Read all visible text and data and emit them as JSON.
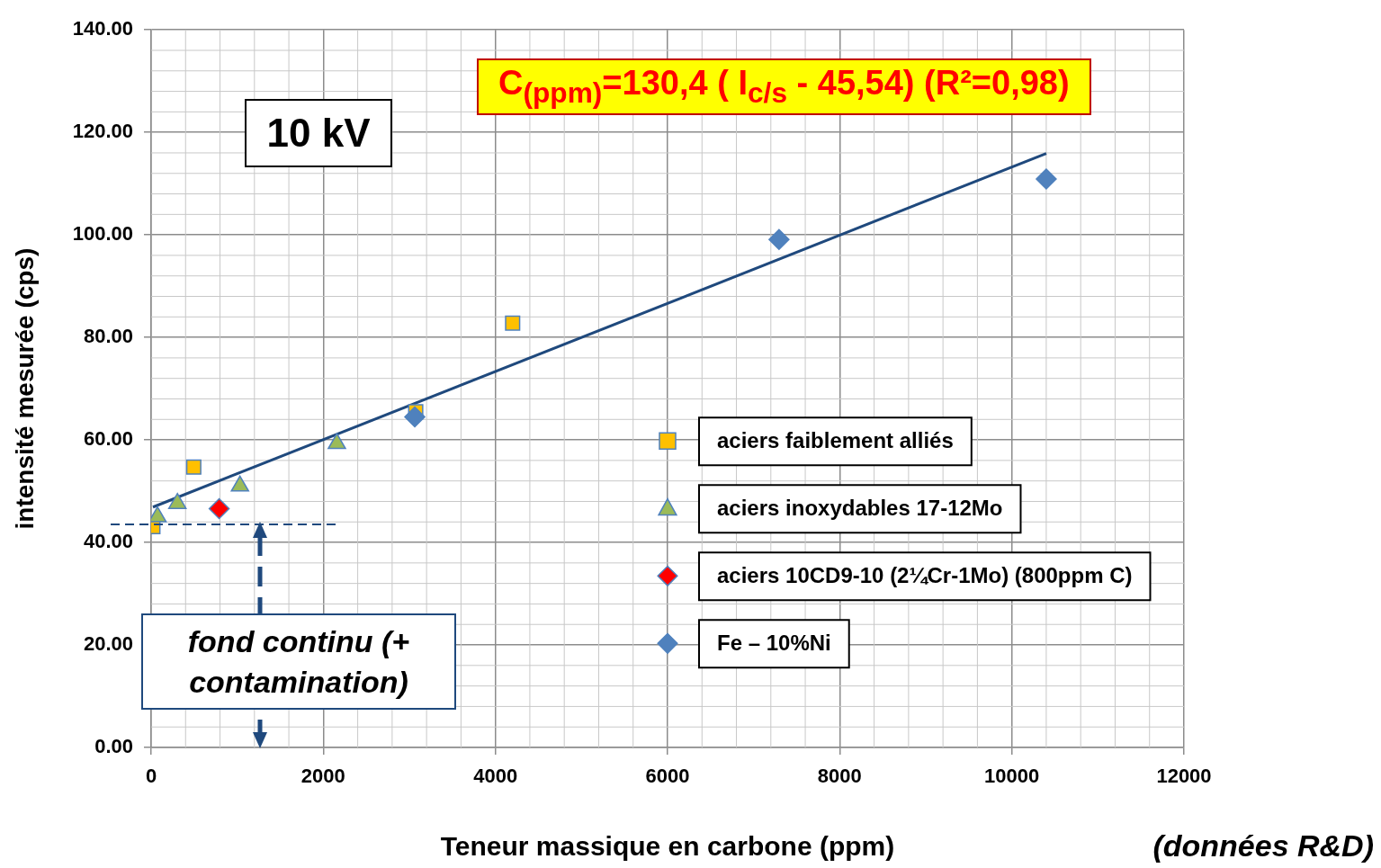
{
  "chart_data": {
    "type": "scatter",
    "xlabel": "Teneur massique en carbone (ppm)",
    "ylabel": "intensité mesurée (cps)",
    "xlim": [
      0,
      12000
    ],
    "xticks": [
      0,
      2000,
      4000,
      6000,
      8000,
      10000,
      12000
    ],
    "ylim": [
      0,
      140
    ],
    "yticks": [
      {
        "value": 0,
        "label": "0.00"
      },
      {
        "value": 20,
        "label": "20.00"
      },
      {
        "value": 40,
        "label": "40.00"
      },
      {
        "value": 60,
        "label": "60.00"
      },
      {
        "value": 80,
        "label": "80.00"
      },
      {
        "value": 100,
        "label": "100.00"
      },
      {
        "value": 120,
        "label": "120.00"
      },
      {
        "value": 140,
        "label": "140.00"
      }
    ],
    "grid": true,
    "legend": "right",
    "series": [
      {
        "name": "aciers faiblement alliés",
        "color": "#ffc000",
        "marker": "square",
        "x": [
          20,
          495,
          3074,
          4200
        ],
        "values": [
          43.1,
          54.7,
          65.5,
          82.8
        ]
      },
      {
        "name": "aciers inoxydables 17-12Mo",
        "color": "#9bbb59",
        "marker": "triangle",
        "x": [
          74,
          305,
          1032,
          2158
        ],
        "values": [
          45.0,
          47.6,
          51.0,
          59.3
        ]
      },
      {
        "name": "aciers 10CD9-10 (2¼Cr-1Mo) (800ppm C)",
        "color": "#ff0000",
        "marker": "diamond",
        "x": [
          790
        ],
        "values": [
          46.6
        ]
      },
      {
        "name": "Fe – 10%Ni",
        "color": "#4f81bd",
        "marker": "diamond",
        "x": [
          3063,
          7295,
          10400
        ],
        "values": [
          64.5,
          99.1,
          110.9
        ]
      },
      {
        "type": "line",
        "color": "#1f497d",
        "marker": "none",
        "x": [
          21,
          10400
        ],
        "values": [
          46.9,
          115.9
        ]
      }
    ],
    "ref_lines": [
      {
        "axis": "y",
        "value": 43.5,
        "color": "#1f497d",
        "line_style": "dashed"
      }
    ],
    "annotations": [
      "C$_{(ppm)}$=130,4 ( I$_{c/s}$ - 45,54) (R²=0,98)",
      "10 kV",
      "fond continu (+ contamination)",
      "(données R&D)"
    ]
  }
}
